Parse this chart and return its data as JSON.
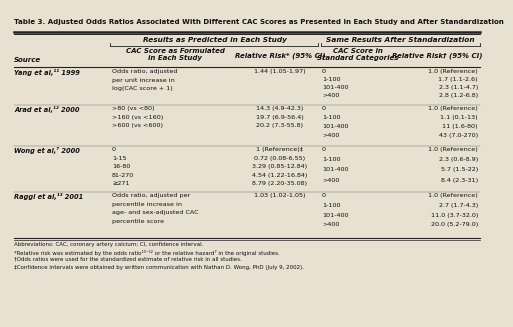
{
  "title": "Table 3. Adjusted Odds Ratios Associated With Different CAC Scores as Presented in Each Study and After Standardization",
  "col_header1": "Results as Predicted in Each Study",
  "col_header2": "Same Results After Standardization",
  "sub_header_col1": "CAC Score as Formulated\nin Each Study",
  "sub_header_col2": "Relative Risk* (95% CI)",
  "sub_header_col3": "CAC Score in\nStandard Categories",
  "sub_header_col4": "Relative Risk† (95% CI)",
  "source_label": "Source",
  "rows": [
    {
      "source": "Yang et al,¹¹ 1999",
      "cac_formulated": [
        "Odds ratio, adjusted",
        "per unit increase in",
        "log(CAC score + 1)"
      ],
      "rr_formulated": [
        "1.44 (1.05-1.97)",
        "",
        ""
      ],
      "cac_standard": [
        "0",
        "1-100",
        "101-400",
        ">400"
      ],
      "rr_standard": [
        "1.0 (Reference)",
        "1.7 (1.1-2.6)",
        "2.3 (1.1-4.7)",
        "2.8 (1.2-6.8)"
      ]
    },
    {
      "source": "Arad et al,¹² 2000",
      "cac_formulated": [
        ">80 (vs <80)",
        ">160 (vs <160)",
        ">600 (vs <600)"
      ],
      "rr_formulated": [
        "14.3 (4.9-42.3)",
        "19.7 (6.9-56.4)",
        "20.2 (7.3-55.8)"
      ],
      "cac_standard": [
        "0",
        "1-100",
        "101-400",
        ">400"
      ],
      "rr_standard": [
        "1.0 (Reference)",
        "1.1 (0.1-13)",
        "11 (1.6-80)",
        "43 (7.0-270)"
      ]
    },
    {
      "source": "Wong et al,⁷ 2000",
      "cac_formulated": [
        "0",
        "1-15",
        "16-80",
        "81-270",
        "≥271"
      ],
      "rr_formulated": [
        "1 (Reference)‡",
        "0.72 (0.08-6.55)",
        "3.29 (0.85-12.84)",
        "4.54 (1.22-16.84)",
        "8.79 (2.20-35.08)"
      ],
      "cac_standard": [
        "0",
        "1-100",
        "101-400",
        ">400"
      ],
      "rr_standard": [
        "1.0 (Reference)",
        "2.3 (0.6-8.9)",
        "5.7 (1.5-22)",
        "8.4 (2.3-31)"
      ]
    },
    {
      "source": "Raggi et al,¹³ 2001",
      "cac_formulated": [
        "Odds ratio, adjusted per",
        "percentile increase in",
        "age- and sex-adjusted CAC",
        "percentile score"
      ],
      "rr_formulated": [
        "1.03 (1.02-1.05)",
        "",
        "",
        ""
      ],
      "cac_standard": [
        "0",
        "1-100",
        "101-400",
        ">400"
      ],
      "rr_standard": [
        "1.0 (Reference)",
        "2.7 (1.7-4.3)",
        "11.0 (3.7-32.0)",
        "20.0 (5.2-79.0)"
      ]
    }
  ],
  "footnotes": [
    "Abbreviations: CAC, coronary artery calcium; CI, confidence interval.",
    "*Relative risk was estimated by the odds ratio¹⁰⁻¹² or the relative hazard⁷ in the original studies.",
    "†Odds ratios were used for the standardized estimate of relative risk in all studies.",
    "‡Confidence intervals were obtained by written communication with Nathan D. Wong, PhD (July 9, 2002)."
  ],
  "bg_color": "#e8e0d0",
  "text_color": "#111111"
}
